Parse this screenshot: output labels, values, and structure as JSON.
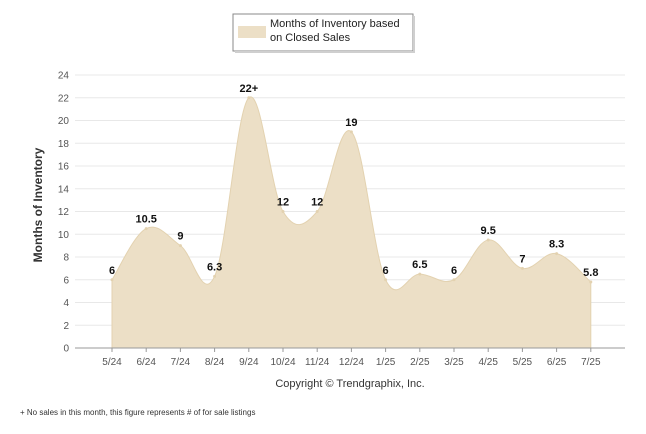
{
  "chart_data": {
    "type": "area",
    "categories": [
      "5/24",
      "6/24",
      "7/24",
      "8/24",
      "9/24",
      "10/24",
      "11/24",
      "12/24",
      "1/25",
      "2/25",
      "3/25",
      "4/25",
      "5/25",
      "6/25",
      "7/25"
    ],
    "series": [
      {
        "name": "Months of Inventory based on Closed Sales",
        "values": [
          6,
          10.5,
          9,
          6.3,
          22,
          12,
          12,
          19,
          6,
          6.5,
          6,
          9.5,
          7,
          8.3,
          5.8
        ],
        "labels": [
          "6",
          "10.5",
          "9",
          "6.3",
          "22+",
          "12",
          "12",
          "19",
          "6",
          "6.5",
          "6",
          "9.5",
          "7",
          "8.3",
          "5.8"
        ]
      }
    ],
    "legend": [
      "Months of Inventory based",
      "on Closed Sales"
    ],
    "ylabel": "Months of Inventory",
    "ylim": [
      0,
      24
    ],
    "yticks": [
      0,
      2,
      4,
      6,
      8,
      10,
      12,
      14,
      16,
      18,
      20,
      22,
      24
    ],
    "grid": true,
    "legend_position": "top-center",
    "colors": {
      "fill": "#ecdfc6",
      "stroke": "#e7d7b8",
      "grid": "#e8e8e8"
    }
  },
  "copyright": "Copyright © Trendgraphix, Inc.",
  "footnote": "+ No sales in this month, this figure represents # of for sale listings"
}
